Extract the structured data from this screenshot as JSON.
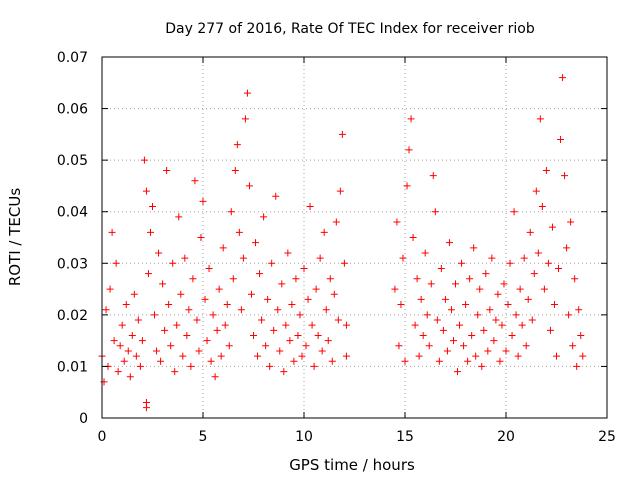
{
  "chart_data": {
    "type": "scatter",
    "title": "Day 277 of 2016, Rate Of TEC Index for receiver riob",
    "xlabel": "GPS time / hours",
    "ylabel": "ROTI / TECUs",
    "xlim": [
      0,
      25
    ],
    "ylim": [
      0,
      0.07
    ],
    "xticks": [
      0,
      5,
      10,
      15,
      20,
      25
    ],
    "xtick_labels": [
      "0",
      "5",
      "10",
      "15",
      "20",
      "25"
    ],
    "yticks": [
      0,
      0.01,
      0.02,
      0.03,
      0.04,
      0.05,
      0.06,
      0.07
    ],
    "ytick_labels": [
      "0",
      "0.01",
      "0.02",
      "0.03",
      "0.04",
      "0.05",
      "0.06",
      "0.07"
    ],
    "grid": true,
    "marker": "+",
    "marker_color": "#ff0000",
    "series": [
      {
        "name": "ROTI",
        "points": [
          [
            0.0,
            0.012
          ],
          [
            0.1,
            0.007
          ],
          [
            0.2,
            0.021
          ],
          [
            0.3,
            0.01
          ],
          [
            0.4,
            0.025
          ],
          [
            0.5,
            0.036
          ],
          [
            0.6,
            0.015
          ],
          [
            0.7,
            0.03
          ],
          [
            0.8,
            0.009
          ],
          [
            0.9,
            0.014
          ],
          [
            1.0,
            0.018
          ],
          [
            1.1,
            0.011
          ],
          [
            1.2,
            0.022
          ],
          [
            1.3,
            0.013
          ],
          [
            1.4,
            0.008
          ],
          [
            1.5,
            0.016
          ],
          [
            1.6,
            0.024
          ],
          [
            1.7,
            0.012
          ],
          [
            1.8,
            0.019
          ],
          [
            1.9,
            0.01
          ],
          [
            2.0,
            0.015
          ],
          [
            2.1,
            0.05
          ],
          [
            2.2,
            0.044
          ],
          [
            2.3,
            0.028
          ],
          [
            2.4,
            0.036
          ],
          [
            2.5,
            0.041
          ],
          [
            2.6,
            0.02
          ],
          [
            2.7,
            0.013
          ],
          [
            2.8,
            0.032
          ],
          [
            2.9,
            0.011
          ],
          [
            2.2,
            0.002
          ],
          [
            2.2,
            0.003
          ],
          [
            3.0,
            0.026
          ],
          [
            3.1,
            0.017
          ],
          [
            3.2,
            0.048
          ],
          [
            3.3,
            0.022
          ],
          [
            3.4,
            0.014
          ],
          [
            3.5,
            0.03
          ],
          [
            3.6,
            0.009
          ],
          [
            3.7,
            0.018
          ],
          [
            3.8,
            0.039
          ],
          [
            3.9,
            0.024
          ],
          [
            4.0,
            0.012
          ],
          [
            4.1,
            0.031
          ],
          [
            4.2,
            0.016
          ],
          [
            4.3,
            0.021
          ],
          [
            4.4,
            0.01
          ],
          [
            4.5,
            0.027
          ],
          [
            4.6,
            0.046
          ],
          [
            4.7,
            0.019
          ],
          [
            4.8,
            0.013
          ],
          [
            4.9,
            0.035
          ],
          [
            5.0,
            0.042
          ],
          [
            5.1,
            0.023
          ],
          [
            5.2,
            0.015
          ],
          [
            5.3,
            0.029
          ],
          [
            5.4,
            0.011
          ],
          [
            5.5,
            0.02
          ],
          [
            5.6,
            0.008
          ],
          [
            5.7,
            0.017
          ],
          [
            5.8,
            0.025
          ],
          [
            5.9,
            0.012
          ],
          [
            6.0,
            0.033
          ],
          [
            6.1,
            0.018
          ],
          [
            6.2,
            0.022
          ],
          [
            6.3,
            0.014
          ],
          [
            6.4,
            0.04
          ],
          [
            6.5,
            0.027
          ],
          [
            6.6,
            0.048
          ],
          [
            6.7,
            0.053
          ],
          [
            6.8,
            0.036
          ],
          [
            6.9,
            0.021
          ],
          [
            7.0,
            0.031
          ],
          [
            7.1,
            0.058
          ],
          [
            7.2,
            0.063
          ],
          [
            7.3,
            0.045
          ],
          [
            7.4,
            0.024
          ],
          [
            7.5,
            0.016
          ],
          [
            7.6,
            0.034
          ],
          [
            7.7,
            0.012
          ],
          [
            7.8,
            0.028
          ],
          [
            7.9,
            0.019
          ],
          [
            8.0,
            0.039
          ],
          [
            8.1,
            0.014
          ],
          [
            8.2,
            0.023
          ],
          [
            8.3,
            0.01
          ],
          [
            8.4,
            0.03
          ],
          [
            8.5,
            0.017
          ],
          [
            8.6,
            0.043
          ],
          [
            8.7,
            0.021
          ],
          [
            8.8,
            0.013
          ],
          [
            8.9,
            0.026
          ],
          [
            9.0,
            0.009
          ],
          [
            9.1,
            0.018
          ],
          [
            9.2,
            0.032
          ],
          [
            9.3,
            0.015
          ],
          [
            9.4,
            0.022
          ],
          [
            9.5,
            0.011
          ],
          [
            9.6,
            0.027
          ],
          [
            9.7,
            0.016
          ],
          [
            9.8,
            0.02
          ],
          [
            9.9,
            0.012
          ],
          [
            10.0,
            0.029
          ],
          [
            10.1,
            0.014
          ],
          [
            10.2,
            0.023
          ],
          [
            10.3,
            0.041
          ],
          [
            10.4,
            0.018
          ],
          [
            10.5,
            0.01
          ],
          [
            10.6,
            0.025
          ],
          [
            10.7,
            0.016
          ],
          [
            10.8,
            0.031
          ],
          [
            10.9,
            0.013
          ],
          [
            11.0,
            0.036
          ],
          [
            11.1,
            0.021
          ],
          [
            11.2,
            0.015
          ],
          [
            11.3,
            0.027
          ],
          [
            11.4,
            0.011
          ],
          [
            11.5,
            0.024
          ],
          [
            11.6,
            0.038
          ],
          [
            11.7,
            0.019
          ],
          [
            11.8,
            0.044
          ],
          [
            11.9,
            0.055
          ],
          [
            12.0,
            0.03
          ],
          [
            12.1,
            0.018
          ],
          [
            12.1,
            0.012
          ],
          [
            14.5,
            0.025
          ],
          [
            14.6,
            0.038
          ],
          [
            14.7,
            0.014
          ],
          [
            14.8,
            0.022
          ],
          [
            14.9,
            0.031
          ],
          [
            15.0,
            0.011
          ],
          [
            15.1,
            0.045
          ],
          [
            15.2,
            0.052
          ],
          [
            15.3,
            0.058
          ],
          [
            15.4,
            0.035
          ],
          [
            15.5,
            0.018
          ],
          [
            15.6,
            0.027
          ],
          [
            15.7,
            0.012
          ],
          [
            15.8,
            0.023
          ],
          [
            15.9,
            0.016
          ],
          [
            16.0,
            0.032
          ],
          [
            16.1,
            0.02
          ],
          [
            16.2,
            0.014
          ],
          [
            16.3,
            0.026
          ],
          [
            16.4,
            0.047
          ],
          [
            16.5,
            0.04
          ],
          [
            16.6,
            0.019
          ],
          [
            16.7,
            0.011
          ],
          [
            16.8,
            0.029
          ],
          [
            16.9,
            0.017
          ],
          [
            17.0,
            0.023
          ],
          [
            17.1,
            0.013
          ],
          [
            17.2,
            0.034
          ],
          [
            17.3,
            0.021
          ],
          [
            17.4,
            0.015
          ],
          [
            17.5,
            0.026
          ],
          [
            17.6,
            0.009
          ],
          [
            17.7,
            0.018
          ],
          [
            17.8,
            0.03
          ],
          [
            17.9,
            0.014
          ],
          [
            18.0,
            0.022
          ],
          [
            18.1,
            0.011
          ],
          [
            18.2,
            0.027
          ],
          [
            18.3,
            0.016
          ],
          [
            18.4,
            0.033
          ],
          [
            18.5,
            0.012
          ],
          [
            18.6,
            0.02
          ],
          [
            18.7,
            0.025
          ],
          [
            18.8,
            0.01
          ],
          [
            18.9,
            0.017
          ],
          [
            19.0,
            0.028
          ],
          [
            19.1,
            0.013
          ],
          [
            19.2,
            0.021
          ],
          [
            19.3,
            0.031
          ],
          [
            19.4,
            0.015
          ],
          [
            19.5,
            0.019
          ],
          [
            19.6,
            0.024
          ],
          [
            19.7,
            0.011
          ],
          [
            19.8,
            0.018
          ],
          [
            19.9,
            0.026
          ],
          [
            20.0,
            0.013
          ],
          [
            20.1,
            0.022
          ],
          [
            20.2,
            0.03
          ],
          [
            20.3,
            0.016
          ],
          [
            20.4,
            0.04
          ],
          [
            20.5,
            0.02
          ],
          [
            20.6,
            0.012
          ],
          [
            20.7,
            0.025
          ],
          [
            20.8,
            0.018
          ],
          [
            20.9,
            0.031
          ],
          [
            21.0,
            0.014
          ],
          [
            21.1,
            0.023
          ],
          [
            21.2,
            0.036
          ],
          [
            21.3,
            0.019
          ],
          [
            21.4,
            0.028
          ],
          [
            21.5,
            0.044
          ],
          [
            21.6,
            0.032
          ],
          [
            21.7,
            0.058
          ],
          [
            21.8,
            0.041
          ],
          [
            21.9,
            0.025
          ],
          [
            22.0,
            0.048
          ],
          [
            22.1,
            0.03
          ],
          [
            22.2,
            0.017
          ],
          [
            22.3,
            0.037
          ],
          [
            22.4,
            0.022
          ],
          [
            22.5,
            0.012
          ],
          [
            22.6,
            0.029
          ],
          [
            22.7,
            0.054
          ],
          [
            22.8,
            0.066
          ],
          [
            22.9,
            0.047
          ],
          [
            23.0,
            0.033
          ],
          [
            23.1,
            0.02
          ],
          [
            23.2,
            0.038
          ],
          [
            23.3,
            0.014
          ],
          [
            23.4,
            0.027
          ],
          [
            23.5,
            0.01
          ],
          [
            23.6,
            0.021
          ],
          [
            23.7,
            0.016
          ],
          [
            23.8,
            0.012
          ]
        ]
      }
    ]
  }
}
